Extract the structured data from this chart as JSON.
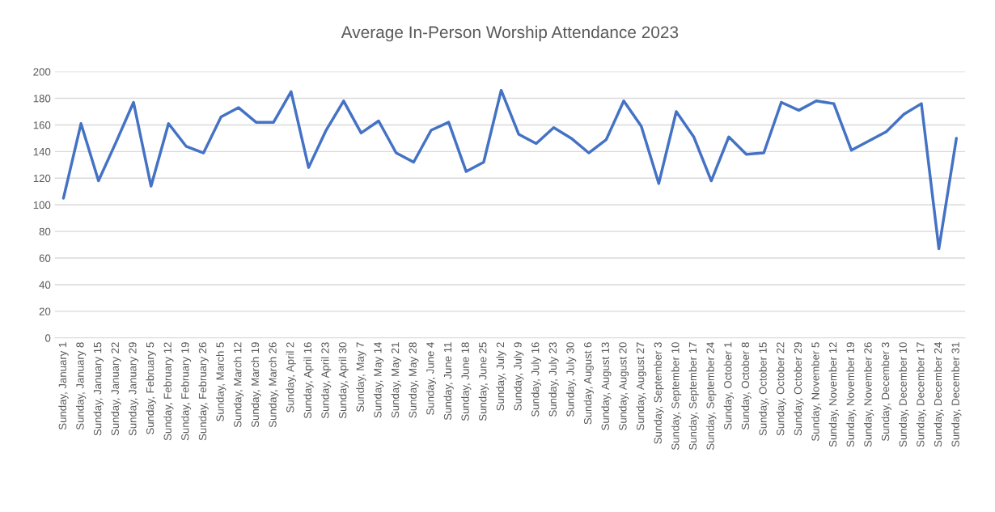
{
  "chart_data": {
    "type": "line",
    "title": "Average In-Person Worship Attendance 2023",
    "categories": [
      "Sunday, January 1",
      "Sunday, January 8",
      "Sunday, January 15",
      "Sunday, January 22",
      "Sunday, January 29",
      "Sunday, February 5",
      "Sunday, February 12",
      "Sunday, February 19",
      "Sunday, February 26",
      "Sunday, March 5",
      "Sunday, March 12",
      "Sunday, March 19",
      "Sunday, March 26",
      "Sunday, April 2",
      "Sunday, April 16",
      "Sunday, April 23",
      "Sunday, April 30",
      "Sunday, May 7",
      "Sunday, May 14",
      "Sunday, May 21",
      "Sunday, May 28",
      "Sunday, June 4",
      "Sunday, June 11",
      "Sunday, June 18",
      "Sunday, June 25",
      "Sunday, July 2",
      "Sunday, July 9",
      "Sunday, July 16",
      "Sunday, July 23",
      "Sunday, July 30",
      "Sunday, August 6",
      "Sunday, August 13",
      "Sunday, August 20",
      "Sunday, August 27",
      "Sunday, September 3",
      "Sunday, September 10",
      "Sunday, September 17",
      "Sunday, September 24",
      "Sunday, October 1",
      "Sunday, October 8",
      "Sunday, October 15",
      "Sunday, October 22",
      "Sunday, October 29",
      "Sunday, November 5",
      "Sunday, November 12",
      "Sunday, November 19",
      "Sunday, November 26",
      "Sunday, December 3",
      "Sunday, December 10",
      "Sunday, December 17",
      "Sunday, December 24",
      "Sunday, December 31"
    ],
    "series": [
      {
        "color": "#4472c4",
        "values": [
          105,
          161,
          118,
          147,
          177,
          114,
          161,
          144,
          139,
          166,
          173,
          162,
          162,
          185,
          128,
          156,
          178,
          154,
          163,
          139,
          132,
          156,
          162,
          125,
          132,
          186,
          153,
          146,
          158,
          150,
          139,
          149,
          178,
          159,
          116,
          170,
          151,
          118,
          151,
          138,
          139,
          177,
          171,
          178,
          176,
          141,
          148,
          155,
          168,
          176,
          67,
          150
        ]
      }
    ],
    "ylim": [
      0,
      200
    ],
    "yticks": [
      0,
      20,
      40,
      60,
      80,
      100,
      120,
      140,
      160,
      180,
      200
    ],
    "grid": "y",
    "marker": "none",
    "line_style": "solid"
  }
}
